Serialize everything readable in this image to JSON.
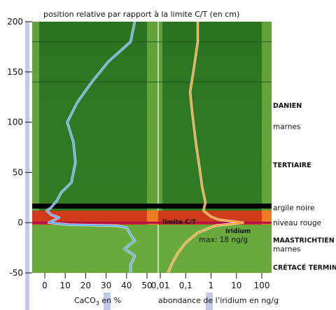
{
  "chart_data": {
    "type": "line",
    "title": "position relative par rapport à la limite C/T (en cm)",
    "ylim": [
      -50,
      200
    ],
    "y_ticks": [
      "-50",
      "0",
      "50",
      "100",
      "150",
      "200"
    ],
    "left_panel": {
      "xlabel_main": "CaCO",
      "xlabel_sub": "3",
      "xlabel_rest": " en %",
      "xlim": [
        0,
        50
      ],
      "x_ticks": [
        "0",
        "10",
        "20",
        "30",
        "40",
        "50"
      ],
      "series": [
        {
          "color": "#4aa8ff",
          "points": [
            [
              44,
              200
            ],
            [
              42,
              180
            ],
            [
              31,
              160
            ],
            [
              23,
              140
            ],
            [
              16,
              120
            ],
            [
              11,
              100
            ],
            [
              14,
              80
            ],
            [
              15,
              60
            ],
            [
              13,
              40
            ],
            [
              8,
              30
            ],
            [
              6,
              22
            ],
            [
              3,
              15
            ],
            [
              1,
              12
            ],
            [
              3,
              8
            ],
            [
              7,
              5
            ],
            [
              4,
              2
            ],
            [
              2,
              0
            ],
            [
              12,
              -2
            ],
            [
              35,
              -3
            ],
            [
              40,
              -5
            ],
            [
              42,
              -12
            ],
            [
              44,
              -18
            ],
            [
              39,
              -26
            ],
            [
              44,
              -33
            ],
            [
              42,
              -42
            ],
            [
              42,
              -50
            ]
          ]
        }
      ]
    },
    "right_panel": {
      "xlabel": "abondance de l’iridium en ng/g",
      "scale": "log",
      "xlim": [
        0.01,
        100
      ],
      "x_ticks": [
        {
          "value": 0.01,
          "label": "0,01"
        },
        {
          "value": 0.1,
          "label": "0,1"
        },
        {
          "value": 1,
          "label": "1"
        },
        {
          "value": 10,
          "label": "10"
        },
        {
          "value": 100,
          "label": "100"
        }
      ],
      "series": [
        {
          "color": "#ff9a1a",
          "points": [
            [
              0.3,
              200
            ],
            [
              0.3,
              180
            ],
            [
              0.2,
              150
            ],
            [
              0.15,
              130
            ],
            [
              0.18,
              110
            ],
            [
              0.25,
              80
            ],
            [
              0.35,
              55
            ],
            [
              0.45,
              35
            ],
            [
              0.6,
              20
            ],
            [
              0.5,
              12
            ],
            [
              1.0,
              6
            ],
            [
              2.0,
              3
            ],
            [
              18,
              0
            ],
            [
              1.5,
              -3
            ],
            [
              0.3,
              -10
            ],
            [
              0.1,
              -20
            ],
            [
              0.05,
              -30
            ],
            [
              0.03,
              -40
            ],
            [
              0.02,
              -50
            ]
          ]
        }
      ]
    },
    "bands": {
      "argile_noire": [
        14,
        19
      ],
      "niveau_rouge": [
        -2,
        12
      ],
      "limite_ct": 0,
      "green_light_below": -2
    },
    "horizontal_lines": [
      180,
      140
    ],
    "annotations": {
      "limite": "limite C/T",
      "iridium": "Iridium",
      "max": "max: 18 ng/g"
    },
    "side_labels": [
      {
        "text": "DANIEN",
        "bold": true,
        "y": 117
      },
      {
        "text": "marnes",
        "bold": false,
        "y": 96
      },
      {
        "text": "TERTIAIRE",
        "bold": true,
        "y": 58
      },
      {
        "text": "argile noire",
        "bold": false,
        "y": 15
      },
      {
        "text": "niveau rouge",
        "bold": false,
        "y": 0
      },
      {
        "text": "MAASTRICHTIEN",
        "bold": true,
        "y": -17
      },
      {
        "text": "marnes",
        "bold": false,
        "y": -26
      },
      {
        "text": "CRÉTACÉ TERMINAL",
        "bold": true,
        "y": -44
      }
    ],
    "colors": {
      "green_dark": "#2f7a22",
      "green_light": "#6aaa3d",
      "band_red": "#cf3a1a",
      "band_black": "#000000",
      "axis_strip": "#c3c9ea",
      "limit_line": "#b0104a"
    }
  }
}
